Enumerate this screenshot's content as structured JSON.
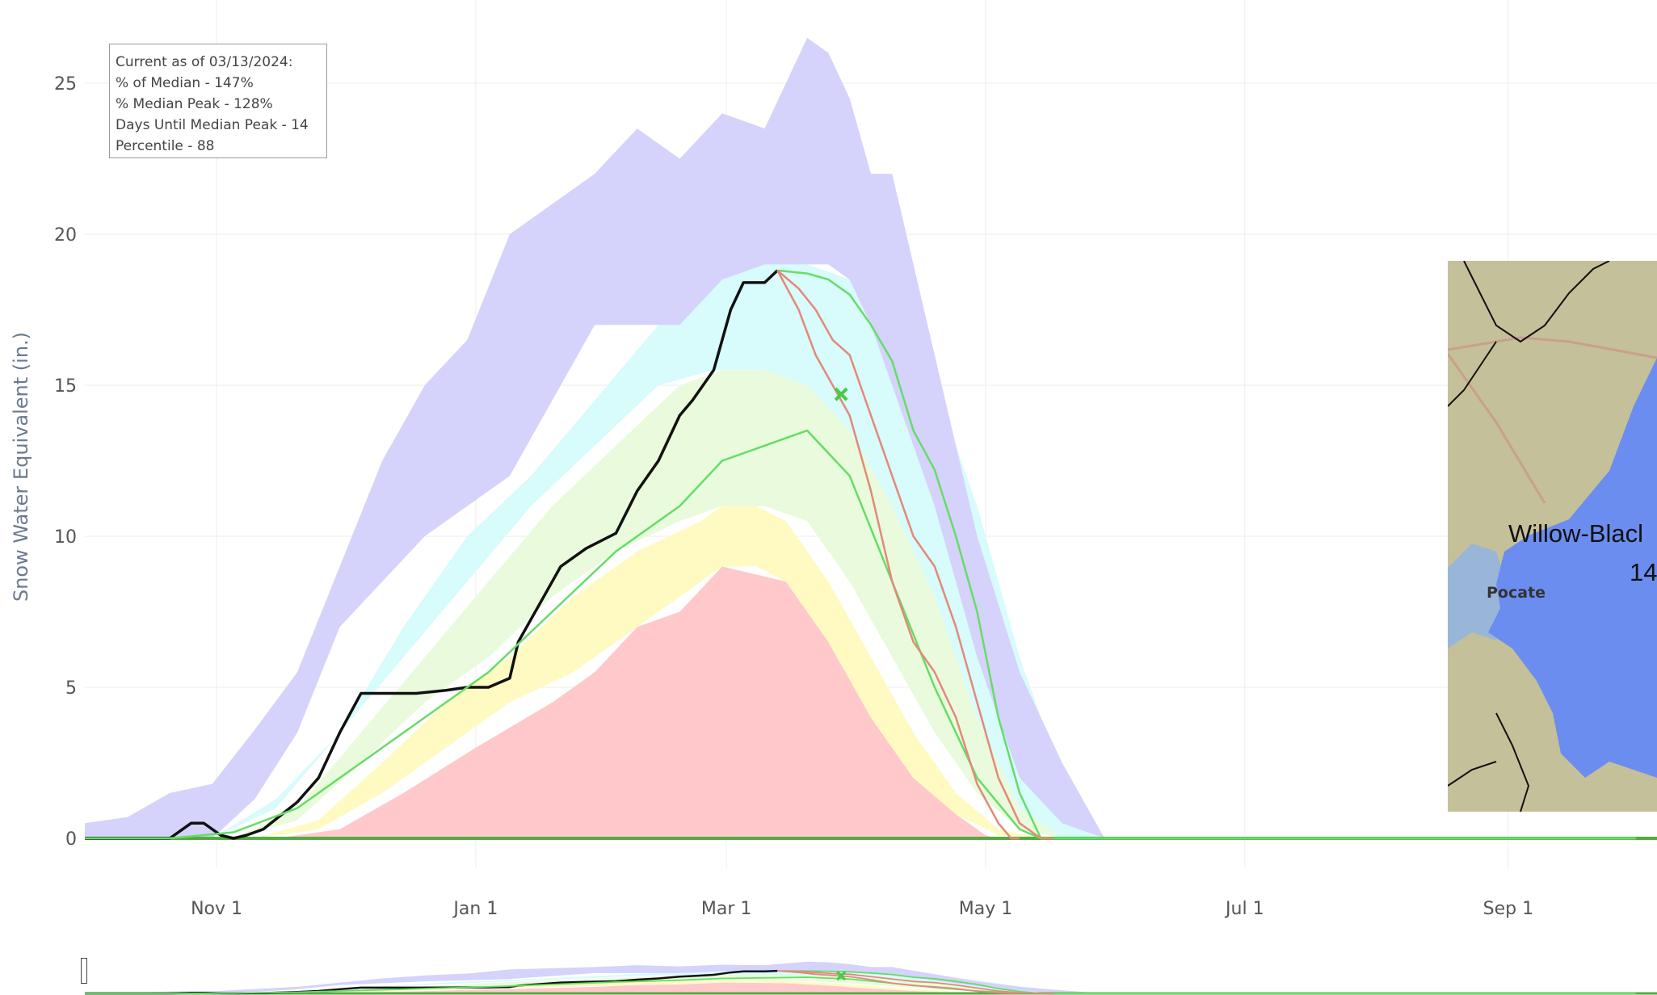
{
  "info_box": {
    "lines": [
      "Current as of 03/13/2024:",
      "% of Median - 147%",
      "% Median Peak - 128%",
      "Days Until Median Peak - 14",
      "Percentile - 88"
    ]
  },
  "map": {
    "basin_label_line1": "Willow-Blacl",
    "basin_label_line2": "14",
    "city_label": "Pocate",
    "colors": {
      "land": "#c4c09a",
      "basin": "#6b8df0",
      "water": "#8fb3e8",
      "roads": "#c9a08a"
    }
  },
  "chart_data": {
    "type": "area",
    "ylabel": "Snow Water Equivalent (in.)",
    "xlabel": "",
    "x_ticks": [
      "Nov 1",
      "Jan 1",
      "Mar 1",
      "May 1",
      "Jul 1",
      "Sep 1"
    ],
    "x_tick_days": [
      31,
      92,
      151,
      212,
      273,
      335
    ],
    "x_range_days": [
      0,
      365
    ],
    "y_ticks": [
      0,
      5,
      10,
      15,
      20,
      25
    ],
    "ylim": [
      0,
      27
    ],
    "grid": true,
    "bands": [
      {
        "name": "min-10th",
        "color": "#ffc9cc",
        "x": [
          45,
          60,
          75,
          92,
          110,
          120,
          130,
          140,
          150,
          165,
          175,
          185,
          195,
          205,
          212,
          215
        ],
        "lower": [
          0,
          0,
          0,
          0,
          0,
          0,
          0,
          0,
          0,
          0,
          0,
          0,
          0,
          0,
          0,
          0
        ],
        "upper": [
          0,
          0.3,
          1.5,
          3,
          4.5,
          5.5,
          7,
          7.5,
          9,
          8.5,
          6.5,
          4,
          2,
          0.8,
          0.1,
          0
        ]
      },
      {
        "name": "10th-30th",
        "color": "#fffac2",
        "x": [
          40,
          55,
          70,
          85,
          100,
          115,
          130,
          145,
          150,
          158,
          165,
          175,
          185,
          195,
          205,
          215,
          225,
          230
        ],
        "lower": [
          0,
          0.3,
          1.5,
          3,
          4.5,
          5.5,
          7,
          8.5,
          9,
          9,
          8.5,
          6.5,
          4,
          2,
          0.8,
          0.1,
          0,
          0
        ],
        "upper": [
          0,
          0.6,
          2.5,
          4.5,
          6,
          8,
          9.5,
          10.5,
          11,
          11,
          10.5,
          8.5,
          6,
          3.5,
          1.5,
          0.3,
          0,
          0
        ]
      },
      {
        "name": "30th-70th",
        "color": "#e9fbdc",
        "x": [
          35,
          50,
          65,
          80,
          95,
          110,
          125,
          140,
          150,
          160,
          170,
          180,
          190,
          200,
          210,
          220,
          230,
          235
        ],
        "lower": [
          0,
          0.6,
          2.5,
          4.5,
          6,
          8,
          9.5,
          10.5,
          11,
          11,
          10.5,
          8.5,
          6,
          3.5,
          1.5,
          0.3,
          0,
          0
        ],
        "upper": [
          0,
          1,
          3.5,
          6,
          8.5,
          11,
          13,
          15,
          15.5,
          15.5,
          15,
          13.5,
          11,
          8,
          4,
          1,
          0,
          0
        ]
      },
      {
        "name": "70th-90th",
        "color": "#d8fbfb",
        "x": [
          30,
          45,
          60,
          75,
          90,
          105,
          120,
          135,
          148,
          160,
          170,
          180,
          190,
          200,
          210,
          220,
          230,
          240
        ],
        "lower": [
          0,
          1,
          3.5,
          6,
          8.5,
          11,
          13,
          15,
          15.5,
          15.5,
          15,
          13.5,
          11,
          8,
          4,
          1,
          0,
          0
        ],
        "upper": [
          0,
          1.3,
          3.5,
          7,
          10,
          12,
          14.5,
          17,
          18.5,
          19,
          19,
          18.5,
          17,
          15,
          11,
          6,
          2,
          0
        ]
      },
      {
        "name": "90th-max",
        "color": "#d5d2fb",
        "x": [
          0,
          10,
          20,
          30,
          40,
          50,
          60,
          70,
          80,
          90,
          100,
          110,
          120,
          130,
          140,
          150,
          160,
          170,
          175,
          180,
          185,
          190,
          200,
          210,
          220,
          230,
          240,
          250,
          260,
          268
        ],
        "lower": [
          0,
          0,
          0,
          0,
          1.3,
          3.5,
          7,
          8.5,
          10,
          11,
          12,
          14.5,
          17,
          17,
          17,
          18.5,
          19,
          19,
          19,
          18.5,
          17,
          15,
          11,
          6,
          2,
          0.5,
          0,
          0,
          0,
          0
        ],
        "upper": [
          0.5,
          0.7,
          1.5,
          1.8,
          3.6,
          5.5,
          9,
          12.5,
          15,
          16.5,
          20,
          21,
          22,
          23.5,
          22.5,
          24,
          23.5,
          26.5,
          26,
          24.5,
          22,
          22,
          16,
          10,
          5.5,
          2.5,
          0,
          0,
          0,
          0
        ]
      }
    ],
    "series": [
      {
        "name": "",
        "color": "#111111",
        "x": [
          0,
          10,
          20,
          25,
          28,
          32,
          35,
          38,
          42,
          50,
          55,
          60,
          65,
          70,
          72,
          78,
          85,
          90,
          95,
          100,
          102,
          108,
          112,
          118,
          125,
          130,
          135,
          140,
          143,
          148,
          152,
          155,
          160,
          163
        ],
        "values": [
          0,
          0,
          0,
          0.5,
          0.5,
          0.1,
          0,
          0.1,
          0.3,
          1.2,
          2,
          3.5,
          4.8,
          4.8,
          4.8,
          4.8,
          4.9,
          5,
          5,
          5.3,
          6.5,
          8,
          9,
          9.6,
          10.1,
          11.5,
          12.5,
          14,
          14.5,
          15.5,
          17.5,
          18.4,
          18.4,
          18.8
        ]
      },
      {
        "name": "",
        "color": "#66dd66",
        "x": [
          0,
          20,
          35,
          50,
          65,
          80,
          95,
          110,
          125,
          140,
          150,
          160,
          170,
          180,
          190,
          200,
          210,
          220,
          225,
          230,
          365
        ],
        "values": [
          0,
          0,
          0.2,
          1,
          2.5,
          4,
          5.5,
          7.5,
          9.5,
          11,
          12.5,
          13,
          13.5,
          12,
          8.5,
          5,
          2,
          0.3,
          0,
          0,
          0
        ]
      },
      {
        "name": "",
        "color": "#66dd66",
        "x": [
          163,
          170,
          175,
          180,
          185,
          190,
          195,
          200,
          205,
          210,
          215,
          220,
          225,
          230,
          365
        ],
        "values": [
          18.8,
          18.7,
          18.5,
          18,
          17,
          15.8,
          13.5,
          12.2,
          10,
          7.5,
          4,
          1.5,
          0,
          0,
          0
        ]
      },
      {
        "name": "",
        "color": "#e28a7a",
        "x": [
          163,
          168,
          172,
          176,
          180,
          185,
          190,
          195,
          200,
          205,
          210,
          215,
          218,
          220
        ],
        "values": [
          18.8,
          17.5,
          16,
          15,
          14,
          11.5,
          8.5,
          6.5,
          5.5,
          4,
          1.8,
          0.5,
          0,
          0
        ]
      },
      {
        "name": "",
        "color": "#e28a7a",
        "x": [
          163,
          168,
          172,
          176,
          180,
          185,
          190,
          195,
          200,
          205,
          210,
          215,
          220,
          225,
          228
        ],
        "values": [
          18.8,
          18.2,
          17.5,
          16.5,
          16,
          14,
          12,
          10,
          9,
          7,
          4.5,
          2,
          0.5,
          0,
          0
        ]
      }
    ],
    "marker": {
      "name": "",
      "x": 178,
      "y": 14.7,
      "color": "#44cc44",
      "symbol": "x"
    }
  }
}
